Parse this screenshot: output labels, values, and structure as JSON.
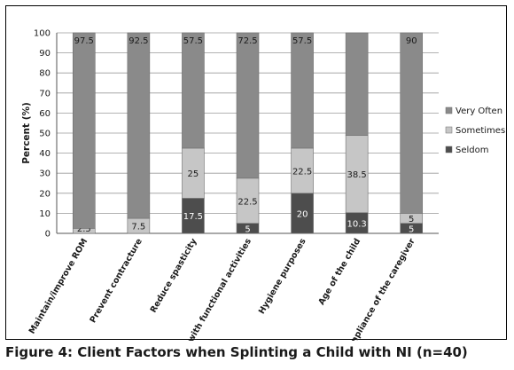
{
  "caption": "Figure 4: Client Factors when Splinting a Child with NI (n=40)",
  "chart_data": {
    "type": "bar",
    "stacked": true,
    "categories": [
      "Maintain/improve ROM",
      "Prevent contracture",
      "Reduce spasticity",
      "Assist with functional activities",
      "Hygiene purposes",
      "Age of the child",
      "Compliance of the caregiver"
    ],
    "series": [
      {
        "name": "Seldom",
        "color": "#4d4d4d",
        "values": [
          0,
          0,
          17.5,
          5,
          20,
          10.3,
          5
        ]
      },
      {
        "name": "Sometimes",
        "color": "#c6c6c6",
        "values": [
          2.5,
          7.5,
          25,
          22.5,
          22.5,
          38.5,
          5
        ]
      },
      {
        "name": "Very Often",
        "color": "#8a8a8a",
        "values": [
          97.5,
          92.5,
          57.5,
          72.5,
          57.5,
          51.2,
          90
        ]
      }
    ],
    "data_labels": [
      [
        "",
        "2.5",
        "97.5"
      ],
      [
        "",
        "7.5",
        "92.5"
      ],
      [
        "17.5",
        "25",
        "57.5"
      ],
      [
        "5",
        "22.5",
        "72.5"
      ],
      [
        "20",
        "22.5",
        "57.5"
      ],
      [
        "10.3",
        "38.5",
        ""
      ],
      [
        "5",
        "5",
        "90"
      ]
    ],
    "ylabel": "Percent (%)",
    "xlabel": "",
    "ylim": [
      0,
      100
    ],
    "yticks": [
      0,
      10,
      20,
      30,
      40,
      50,
      60,
      70,
      80,
      90,
      100
    ],
    "grid": true,
    "legend_position": "right",
    "legend_order": [
      "Very Often",
      "Sometimes",
      "Seldom"
    ]
  }
}
